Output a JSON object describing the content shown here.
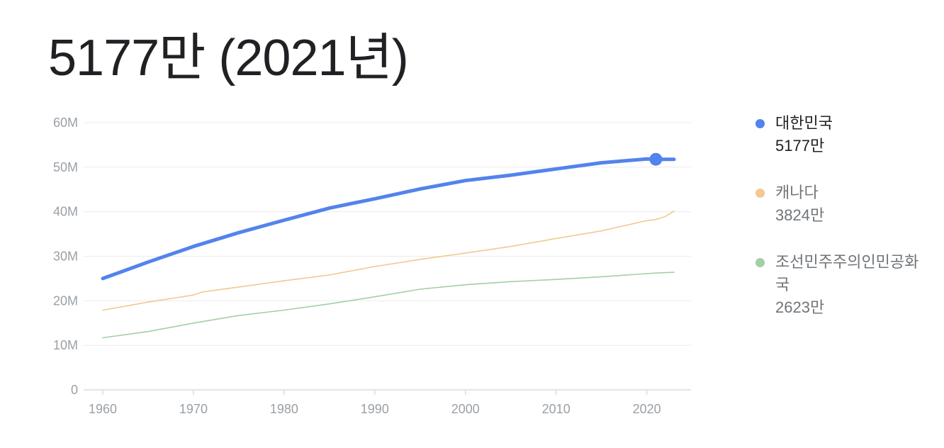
{
  "header": {
    "headline": "5177만 (2021년)"
  },
  "legend": [
    {
      "name": "대한민국",
      "value": "5177만",
      "color": "#5383ec",
      "primary": true
    },
    {
      "name": "캐나다",
      "value": "3824만",
      "color": "#f2c991",
      "primary": false
    },
    {
      "name": "조선민주주의인민공화국",
      "value": "2623만",
      "color": "#a3cfa6",
      "primary": false
    }
  ],
  "chart_data": {
    "type": "line",
    "xlim": [
      1960,
      2023
    ],
    "ylim": [
      0,
      60000000
    ],
    "x_ticks": [
      1960,
      1970,
      1980,
      1990,
      2000,
      2010,
      2020
    ],
    "x_tick_labels": [
      "1960",
      "1970",
      "1980",
      "1990",
      "2000",
      "2010",
      "2020"
    ],
    "y_ticks": [
      0,
      10000000,
      20000000,
      30000000,
      40000000,
      50000000,
      60000000
    ],
    "y_tick_labels": [
      "0",
      "10M",
      "20M",
      "30M",
      "40M",
      "50M",
      "60M"
    ],
    "grid": true,
    "legend_position": "right",
    "highlight": {
      "series": "대한민국",
      "x": 2021,
      "y": 51770000
    },
    "series": [
      {
        "name": "대한민국",
        "color": "#5383ec",
        "emphasis": true,
        "points": [
          [
            1960,
            25000000
          ],
          [
            1965,
            28700000
          ],
          [
            1970,
            32200000
          ],
          [
            1975,
            35300000
          ],
          [
            1980,
            38100000
          ],
          [
            1985,
            40800000
          ],
          [
            1990,
            42900000
          ],
          [
            1995,
            45100000
          ],
          [
            2000,
            47000000
          ],
          [
            2005,
            48200000
          ],
          [
            2010,
            49600000
          ],
          [
            2015,
            51000000
          ],
          [
            2020,
            51840000
          ],
          [
            2021,
            51770000
          ],
          [
            2023,
            51750000
          ]
        ]
      },
      {
        "name": "캐나다",
        "color": "#f2c991",
        "emphasis": false,
        "points": [
          [
            1960,
            17900000
          ],
          [
            1965,
            19700000
          ],
          [
            1970,
            21300000
          ],
          [
            1971,
            22000000
          ],
          [
            1975,
            23100000
          ],
          [
            1980,
            24500000
          ],
          [
            1985,
            25800000
          ],
          [
            1990,
            27700000
          ],
          [
            1995,
            29300000
          ],
          [
            2000,
            30700000
          ],
          [
            2005,
            32200000
          ],
          [
            2010,
            34000000
          ],
          [
            2015,
            35700000
          ],
          [
            2020,
            38000000
          ],
          [
            2021,
            38240000
          ],
          [
            2022,
            38900000
          ],
          [
            2023,
            40100000
          ]
        ]
      },
      {
        "name": "조선민주주의인민공화국",
        "color": "#a3cfa6",
        "emphasis": false,
        "points": [
          [
            1960,
            11700000
          ],
          [
            1965,
            13100000
          ],
          [
            1970,
            15000000
          ],
          [
            1975,
            16700000
          ],
          [
            1980,
            17900000
          ],
          [
            1985,
            19300000
          ],
          [
            1990,
            20900000
          ],
          [
            1995,
            22600000
          ],
          [
            2000,
            23600000
          ],
          [
            2005,
            24300000
          ],
          [
            2010,
            24800000
          ],
          [
            2015,
            25400000
          ],
          [
            2020,
            26100000
          ],
          [
            2021,
            26230000
          ],
          [
            2023,
            26400000
          ]
        ]
      }
    ]
  }
}
